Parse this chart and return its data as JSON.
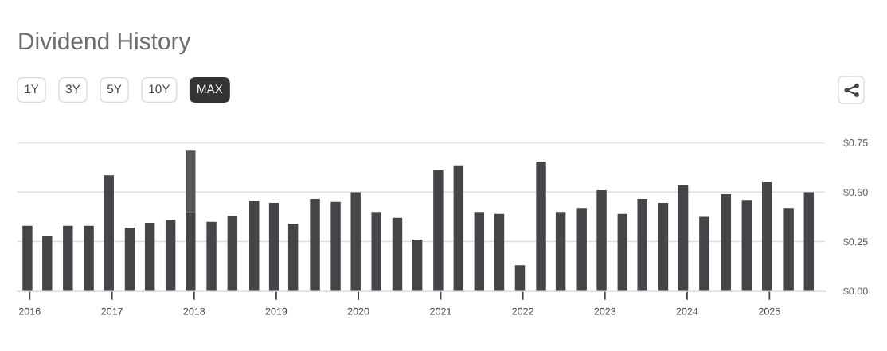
{
  "chart_data": {
    "type": "bar",
    "title": "Dividend History",
    "x": [
      "2015-12-22",
      "2016-03-19",
      "2016-06-19",
      "2016-09-20",
      "2016-12-18",
      "2017-03-21",
      "2017-06-18",
      "2017-09-18",
      "2017-12-16",
      "2018-03-19",
      "2018-06-20",
      "2018-09-25",
      "2018-12-22",
      "2019-03-17",
      "2019-06-22",
      "2019-09-22",
      "2019-12-20",
      "2020-03-21",
      "2020-06-22",
      "2020-09-19",
      "2020-12-21",
      "2021-03-21",
      "2021-06-21",
      "2021-09-18",
      "2021-12-19",
      "2022-03-23",
      "2022-06-18",
      "2022-09-20",
      "2022-12-17",
      "2023-03-20",
      "2023-06-16",
      "2023-09-17",
      "2023-12-15",
      "2024-03-17",
      "2024-06-22",
      "2024-09-22",
      "2024-12-21",
      "2025-03-28",
      "2025-06-25"
    ],
    "stacked": true,
    "series": [
      {
        "color": "#454449",
        "values": [
          0.33,
          0.28,
          0.33,
          0.33,
          0.585,
          0.32,
          0.345,
          0.36,
          0.4,
          0.35,
          0.38,
          0.455,
          0.445,
          0.34,
          0.465,
          0.45,
          0.5,
          0.4,
          0.37,
          0.26,
          0.61,
          0.635,
          0.4,
          0.39,
          0.13,
          0.655,
          0.4,
          0.42,
          0.51,
          0.39,
          0.465,
          0.445,
          0.535,
          0.375,
          0.49,
          0.46,
          0.55,
          0.42,
          0.5
        ]
      },
      {
        "color": "#575757",
        "values": [
          null,
          null,
          null,
          null,
          null,
          null,
          null,
          null,
          0.31,
          null,
          null,
          null,
          null,
          null,
          null,
          null,
          null,
          null,
          null,
          null,
          null,
          null,
          null,
          null,
          null,
          null,
          null,
          null,
          null,
          null,
          null,
          null,
          null,
          null,
          null,
          null,
          null,
          null,
          null
        ]
      }
    ],
    "xlim": [
      "2015-11-08",
      "2025-09-07"
    ],
    "xticks": [
      "2016",
      "2017",
      "2018",
      "2019",
      "2020",
      "2021",
      "2022",
      "2023",
      "2024",
      "2025"
    ],
    "ylim": [
      0,
      0.75
    ],
    "yticks": [
      {
        "value": 0,
        "label": "$0.00"
      },
      {
        "value": 0.25,
        "label": "$0.25"
      },
      {
        "value": 0.5,
        "label": "$0.50"
      },
      {
        "value": 0.75,
        "label": "$0.75"
      }
    ],
    "grid": "y",
    "annotations": [
      "1Y",
      "3Y",
      "5Y",
      "10Y",
      "MAX"
    ]
  }
}
